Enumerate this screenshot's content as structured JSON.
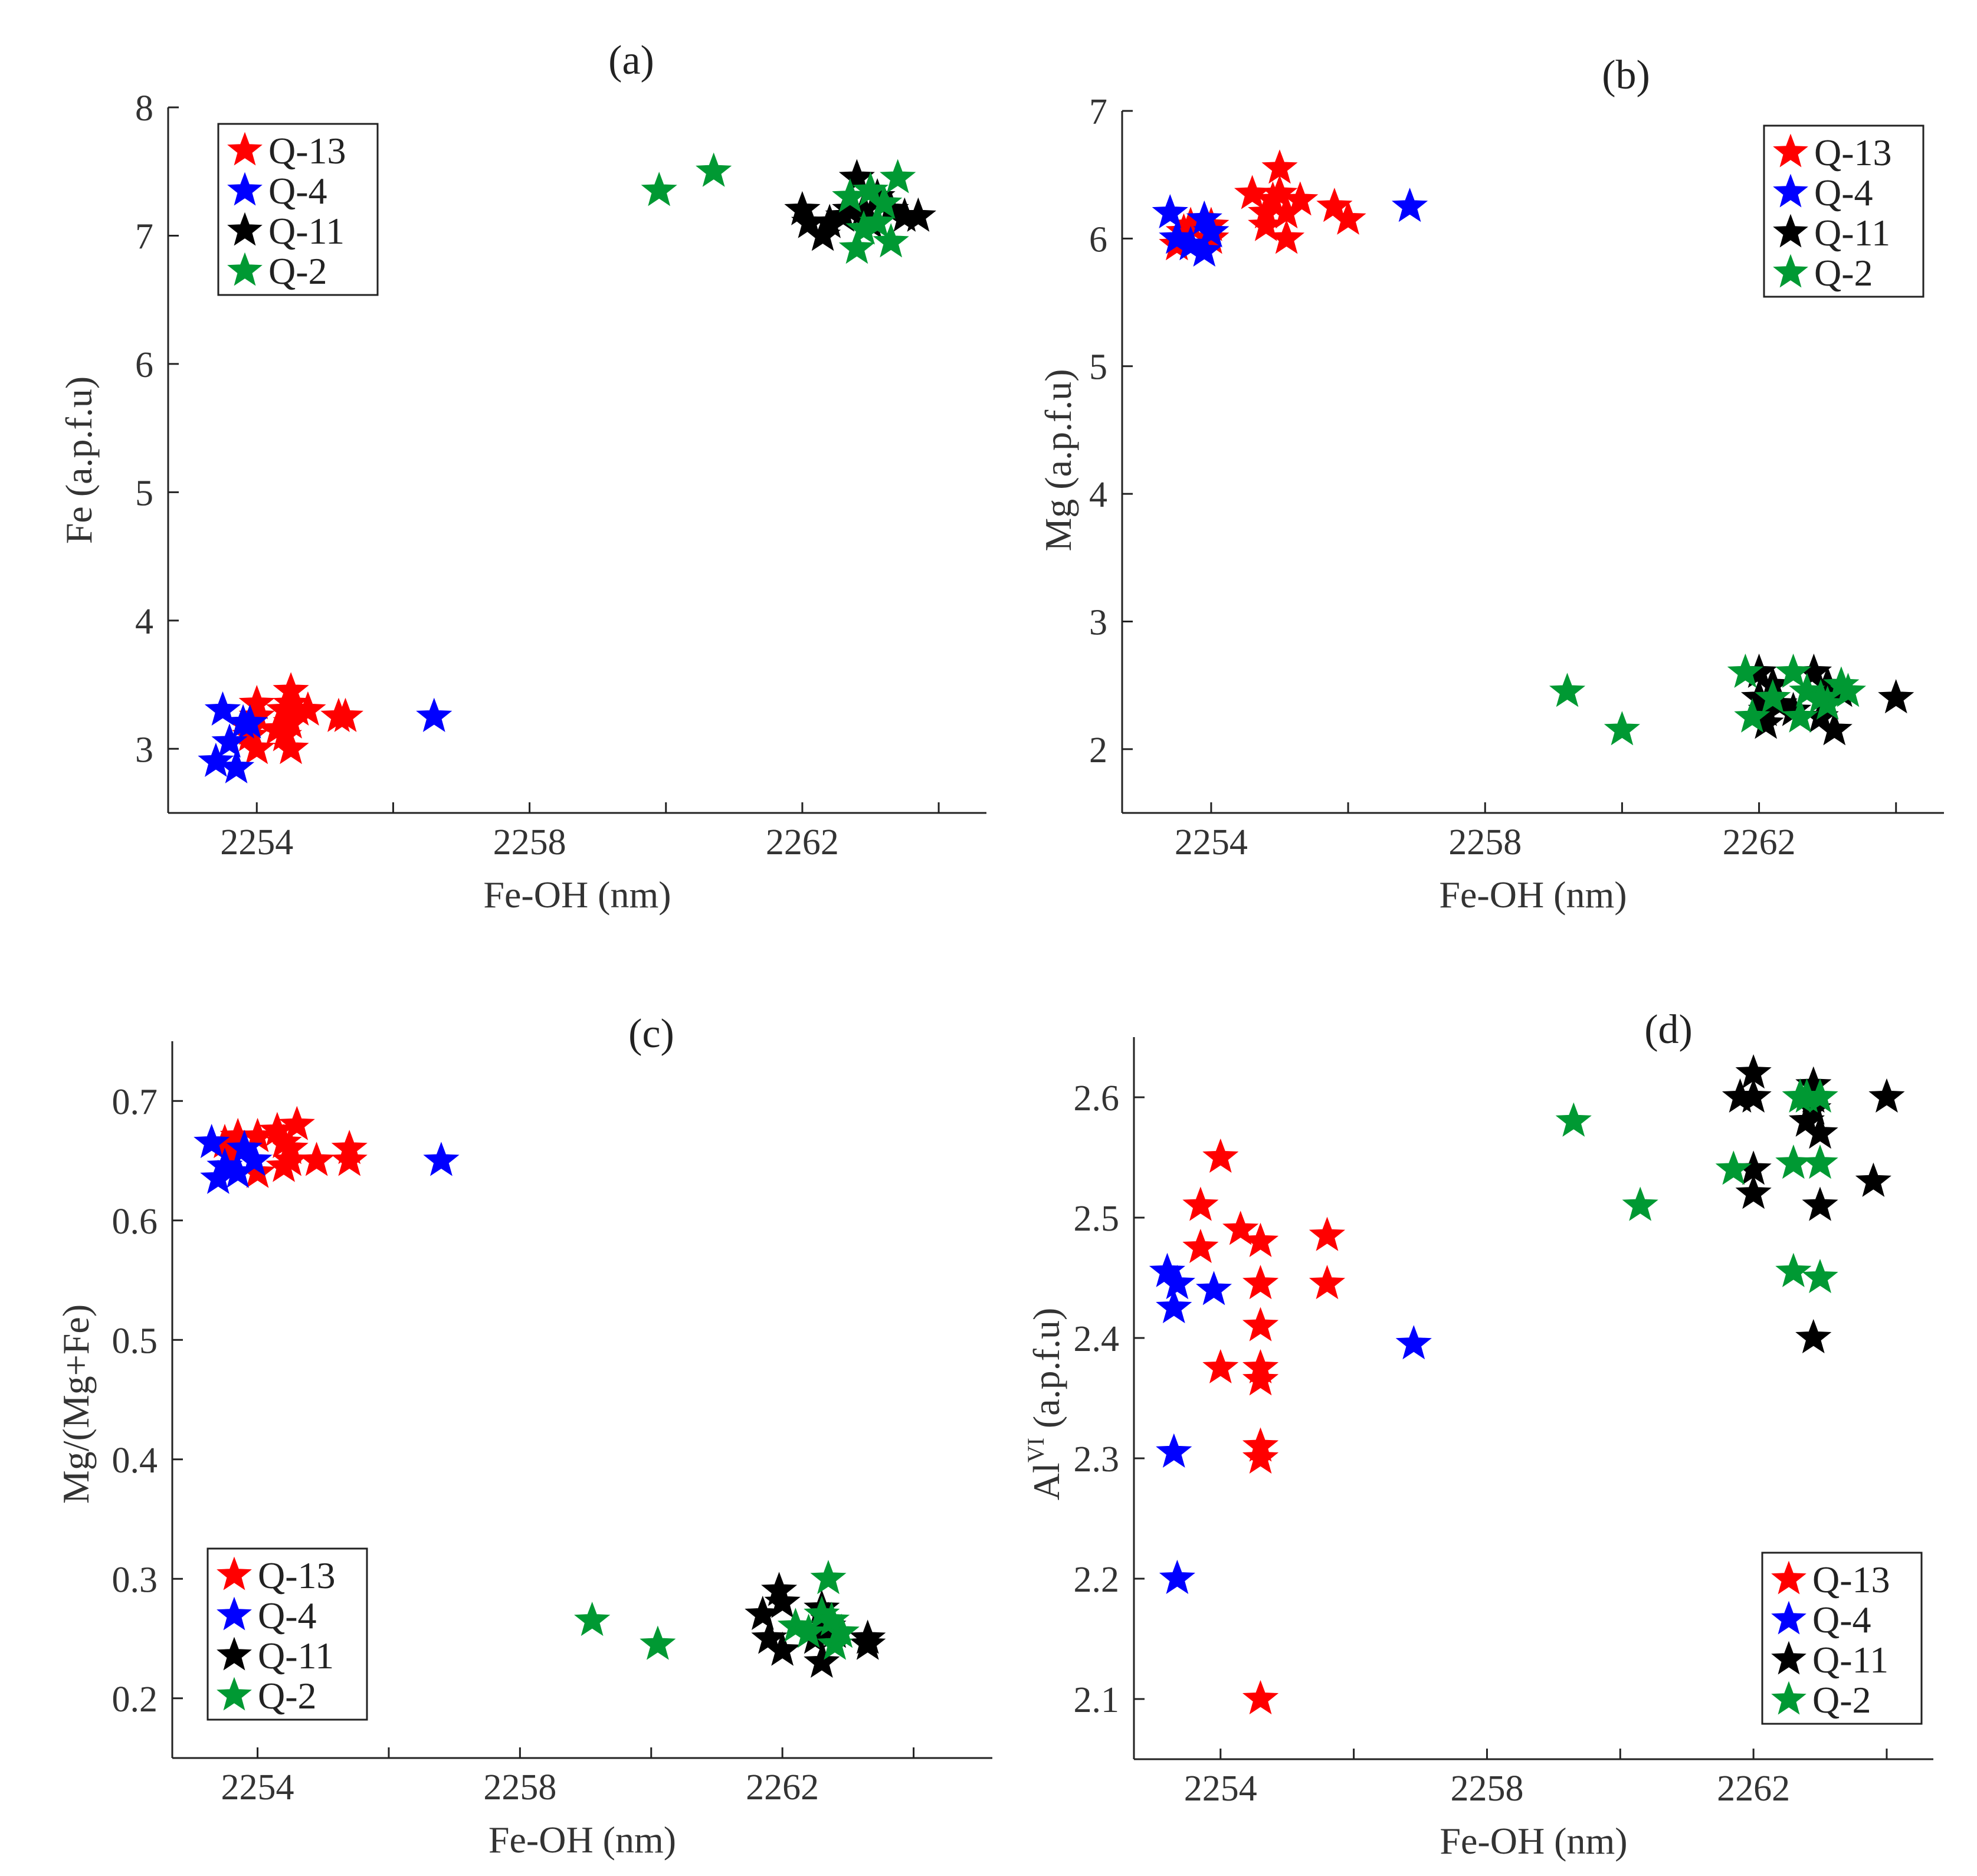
{
  "figure": {
    "series_colors": {
      "Q-13": "#ff0000",
      "Q-4": "#0000ff",
      "Q-11": "#000000",
      "Q-2": "#009933"
    }
  },
  "chart_data": [
    {
      "type": "scatter",
      "title": "(a)",
      "xlabel": "Fe-OH (nm)",
      "ylabel": "Fe (a.p.f.u)",
      "xlim": [
        2252.7,
        2264.7
      ],
      "ylim": [
        2.5,
        8
      ],
      "xticks": [
        2254,
        2258,
        2262
      ],
      "yticks": [
        3,
        4,
        5,
        6,
        7,
        8
      ],
      "legend": "top-left",
      "series": [
        {
          "name": "Q-13",
          "color": "#ff0000",
          "points": [
            [
              2253.9,
              3.1
            ],
            [
              2253.9,
              3.15
            ],
            [
              2254,
              3.35
            ],
            [
              2254,
              3.25
            ],
            [
              2254,
              3.0
            ],
            [
              2254.4,
              3.3
            ],
            [
              2254.3,
              3.15
            ],
            [
              2254.5,
              3.45
            ],
            [
              2254.5,
              3.35
            ],
            [
              2254.5,
              3.2
            ],
            [
              2254.6,
              3.3
            ],
            [
              2254.5,
              3.0
            ],
            [
              2254.75,
              3.3
            ],
            [
              2255.2,
              3.25
            ],
            [
              2255.3,
              3.25
            ],
            [
              2254.4,
              3.1
            ]
          ]
        },
        {
          "name": "Q-4",
          "color": "#0000ff",
          "points": [
            [
              2253.5,
              3.3
            ],
            [
              2253.4,
              2.9
            ],
            [
              2253.6,
              3.05
            ],
            [
              2253.7,
              2.85
            ],
            [
              2253.8,
              3.2
            ],
            [
              2253.9,
              3.2
            ],
            [
              2256.6,
              3.25
            ]
          ]
        },
        {
          "name": "Q-11",
          "color": "#000000",
          "points": [
            [
              2262,
              7.2
            ],
            [
              2262.1,
              7.1
            ],
            [
              2262.3,
              7.0
            ],
            [
              2262.4,
              7.1
            ],
            [
              2262.6,
              7.15
            ],
            [
              2262.8,
              7.45
            ],
            [
              2262.9,
              7.2
            ],
            [
              2263,
              7.1
            ],
            [
              2263.1,
              7.3
            ],
            [
              2263.3,
              7.2
            ],
            [
              2263.5,
              7.15
            ],
            [
              2263.7,
              7.15
            ],
            [
              2262.7,
              7.2
            ]
          ]
        },
        {
          "name": "Q-2",
          "color": "#009933",
          "points": [
            [
              2259.9,
              7.35
            ],
            [
              2260.7,
              7.5
            ],
            [
              2262.7,
              7.3
            ],
            [
              2262.8,
              6.9
            ],
            [
              2262.9,
              7.05
            ],
            [
              2263,
              7.35
            ],
            [
              2263.2,
              7.25
            ],
            [
              2263.3,
              6.95
            ],
            [
              2263.4,
              7.45
            ],
            [
              2263.1,
              7.1
            ]
          ]
        }
      ]
    },
    {
      "type": "scatter",
      "title": "(b)",
      "xlabel": "Fe-OH (nm)",
      "ylabel": "Mg (a.p.f.u)",
      "xlim": [
        2252.7,
        2264.7
      ],
      "ylim": [
        1.5,
        7
      ],
      "xticks": [
        2254,
        2258,
        2262
      ],
      "yticks": [
        2,
        3,
        4,
        5,
        6,
        7
      ],
      "legend": "top-right",
      "series": [
        {
          "name": "Q-13",
          "color": "#ff0000",
          "points": [
            [
              2253.5,
              5.95
            ],
            [
              2253.6,
              6.05
            ],
            [
              2253.7,
              6.1
            ],
            [
              2254,
              6.0
            ],
            [
              2254,
              6.1
            ],
            [
              2254.6,
              6.35
            ],
            [
              2254.8,
              6.2
            ],
            [
              2254.9,
              6.3
            ],
            [
              2255,
              6.55
            ],
            [
              2255,
              6.35
            ],
            [
              2255.1,
              6.2
            ],
            [
              2255.1,
              6.0
            ],
            [
              2255.3,
              6.3
            ],
            [
              2255.8,
              6.25
            ],
            [
              2256,
              6.15
            ],
            [
              2254.8,
              6.1
            ]
          ]
        },
        {
          "name": "Q-4",
          "color": "#0000ff",
          "points": [
            [
              2253.4,
              6.2
            ],
            [
              2253.5,
              6.0
            ],
            [
              2253.7,
              5.95
            ],
            [
              2253.9,
              6.15
            ],
            [
              2253.9,
              5.9
            ],
            [
              2254,
              6.05
            ],
            [
              2256.9,
              6.25
            ]
          ]
        },
        {
          "name": "Q-11",
          "color": "#000000",
          "points": [
            [
              2262,
              2.6
            ],
            [
              2262,
              2.4
            ],
            [
              2262.1,
              2.2
            ],
            [
              2262.2,
              2.5
            ],
            [
              2262.3,
              2.35
            ],
            [
              2262.5,
              2.3
            ],
            [
              2262.8,
              2.6
            ],
            [
              2262.9,
              2.25
            ],
            [
              2263.1,
              2.15
            ],
            [
              2263,
              2.5
            ],
            [
              2263.2,
              2.45
            ],
            [
              2264,
              2.4
            ],
            [
              2262.1,
              2.3
            ]
          ]
        },
        {
          "name": "Q-2",
          "color": "#009933",
          "points": [
            [
              2259.2,
              2.45
            ],
            [
              2260,
              2.15
            ],
            [
              2261.8,
              2.6
            ],
            [
              2261.9,
              2.25
            ],
            [
              2262.2,
              2.4
            ],
            [
              2262.5,
              2.6
            ],
            [
              2262.6,
              2.25
            ],
            [
              2262.7,
              2.45
            ],
            [
              2263,
              2.35
            ],
            [
              2263.2,
              2.5
            ],
            [
              2263.3,
              2.45
            ],
            [
              2262.9,
              2.4
            ]
          ]
        }
      ]
    },
    {
      "type": "scatter",
      "title": "(c)",
      "xlabel": "Fe-OH (nm)",
      "ylabel": "Mg/(Mg+Fe)",
      "xlim": [
        2252.7,
        2265.2
      ],
      "ylim": [
        0.15,
        0.75
      ],
      "xticks": [
        2254,
        2258,
        2262
      ],
      "yticks": [
        0.2,
        0.3,
        0.4,
        0.5,
        0.6,
        0.7
      ],
      "legend": "bottom-left",
      "series": [
        {
          "name": "Q-13",
          "color": "#ff0000",
          "points": [
            [
              2253.5,
              0.665
            ],
            [
              2253.6,
              0.655
            ],
            [
              2253.7,
              0.67
            ],
            [
              2254,
              0.67
            ],
            [
              2254,
              0.64
            ],
            [
              2254.3,
              0.675
            ],
            [
              2254.4,
              0.665
            ],
            [
              2254.5,
              0.65
            ],
            [
              2254.4,
              0.645
            ],
            [
              2254.6,
              0.68
            ],
            [
              2254.9,
              0.65
            ],
            [
              2255.4,
              0.65
            ],
            [
              2255.4,
              0.66
            ],
            [
              2254.5,
              0.66
            ]
          ]
        },
        {
          "name": "Q-4",
          "color": "#0000ff",
          "points": [
            [
              2253.3,
              0.665
            ],
            [
              2253.4,
              0.635
            ],
            [
              2253.5,
              0.645
            ],
            [
              2253.7,
              0.64
            ],
            [
              2253.8,
              0.66
            ],
            [
              2253.95,
              0.65
            ],
            [
              2256.8,
              0.65
            ]
          ]
        },
        {
          "name": "Q-11",
          "color": "#000000",
          "points": [
            [
              2261.7,
              0.27
            ],
            [
              2261.8,
              0.25
            ],
            [
              2262,
              0.24
            ],
            [
              2261.95,
              0.29
            ],
            [
              2262,
              0.28
            ],
            [
              2262.5,
              0.25
            ],
            [
              2262.6,
              0.23
            ],
            [
              2262.6,
              0.275
            ],
            [
              2262.7,
              0.265
            ],
            [
              2262.8,
              0.255
            ],
            [
              2263.3,
              0.25
            ],
            [
              2263.3,
              0.245
            ],
            [
              2262.7,
              0.26
            ]
          ]
        },
        {
          "name": "Q-2",
          "color": "#009933",
          "points": [
            [
              2259.1,
              0.265
            ],
            [
              2260.1,
              0.245
            ],
            [
              2262.2,
              0.26
            ],
            [
              2262.4,
              0.255
            ],
            [
              2262.6,
              0.27
            ],
            [
              2262.7,
              0.3
            ],
            [
              2262.8,
              0.245
            ],
            [
              2262.9,
              0.255
            ],
            [
              2262.75,
              0.265
            ]
          ]
        }
      ]
    },
    {
      "type": "scatter",
      "title": "(d)",
      "xlabel": "Fe-OH (nm)",
      "ylabel": "Al",
      "ylabel_superscript": "VI",
      "ylabel_suffix": " (a.p.f.u)",
      "xlim": [
        2252.7,
        2264.7
      ],
      "ylim": [
        2.05,
        2.65
      ],
      "xticks": [
        2254,
        2258,
        2262
      ],
      "yticks": [
        2.1,
        2.2,
        2.3,
        2.4,
        2.5,
        2.6
      ],
      "legend": "bottom-right",
      "series": [
        {
          "name": "Q-13",
          "color": "#ff0000",
          "points": [
            [
              2253.7,
              2.51
            ],
            [
              2253.7,
              2.475
            ],
            [
              2254,
              2.55
            ],
            [
              2254.3,
              2.49
            ],
            [
              2254,
              2.375
            ],
            [
              2254.6,
              2.48
            ],
            [
              2254.6,
              2.445
            ],
            [
              2254.6,
              2.41
            ],
            [
              2254.6,
              2.375
            ],
            [
              2254.6,
              2.365
            ],
            [
              2254.6,
              2.31
            ],
            [
              2254.6,
              2.3
            ],
            [
              2255.6,
              2.485
            ],
            [
              2255.6,
              2.445
            ],
            [
              2254.6,
              2.1
            ]
          ]
        },
        {
          "name": "Q-4",
          "color": "#0000ff",
          "points": [
            [
              2253.2,
              2.455
            ],
            [
              2253.35,
              2.445
            ],
            [
              2253.3,
              2.425
            ],
            [
              2253.9,
              2.44
            ],
            [
              2253.3,
              2.305
            ],
            [
              2253.35,
              2.2
            ],
            [
              2256.9,
              2.395
            ]
          ]
        },
        {
          "name": "Q-11",
          "color": "#000000",
          "points": [
            [
              2261.8,
              2.6
            ],
            [
              2262,
              2.62
            ],
            [
              2262,
              2.6
            ],
            [
              2262,
              2.54
            ],
            [
              2262,
              2.52
            ],
            [
              2262.8,
              2.58
            ],
            [
              2262.9,
              2.61
            ],
            [
              2262.9,
              2.59
            ],
            [
              2263,
              2.57
            ],
            [
              2263,
              2.51
            ],
            [
              2262.9,
              2.4
            ],
            [
              2263.8,
              2.53
            ],
            [
              2264,
              2.6
            ],
            [
              2262.9,
              2.6
            ]
          ]
        },
        {
          "name": "Q-2",
          "color": "#009933",
          "points": [
            [
              2259.3,
              2.58
            ],
            [
              2260.3,
              2.51
            ],
            [
              2261.7,
              2.54
            ],
            [
              2262.6,
              2.545
            ],
            [
              2262.8,
              2.6
            ],
            [
              2263,
              2.6
            ],
            [
              2263,
              2.545
            ],
            [
              2262.6,
              2.455
            ],
            [
              2263,
              2.45
            ],
            [
              2262.7,
              2.6
            ]
          ]
        }
      ]
    }
  ]
}
